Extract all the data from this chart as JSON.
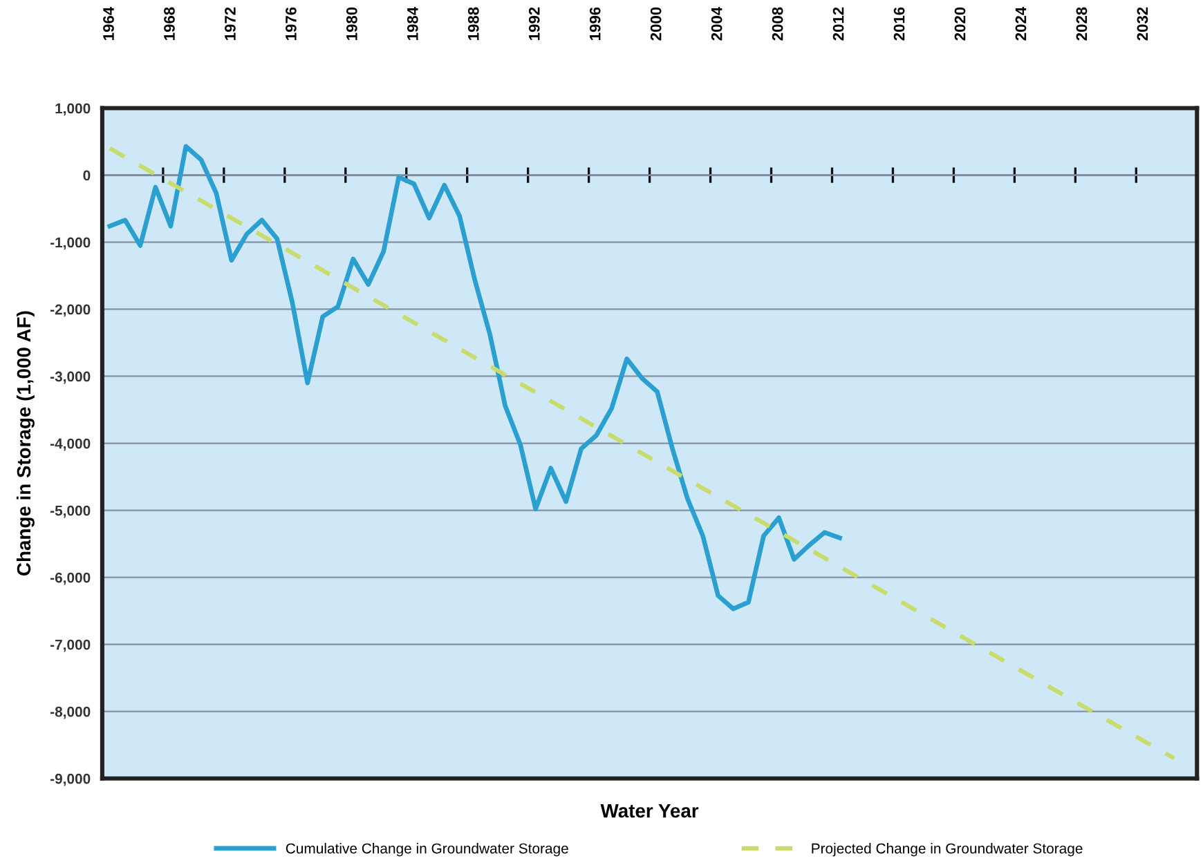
{
  "chart_data": {
    "type": "line",
    "xlabel": "Water Year",
    "ylabel": "Change in Storage (1,000 AF)",
    "xlim": [
      1963.5,
      2035.5
    ],
    "ylim": [
      -9000,
      1000
    ],
    "yticks": [
      {
        "value": 1000,
        "label": "1,000"
      },
      0,
      {
        "value": -1000,
        "label": "-1,000"
      },
      {
        "value": -2000,
        "label": "-2,000"
      },
      {
        "value": -3000,
        "label": "-3,000"
      },
      {
        "value": -4000,
        "label": "-4,000"
      },
      {
        "value": -5000,
        "label": "-5,000"
      },
      {
        "value": -6000,
        "label": "-6,000"
      },
      {
        "value": -7000,
        "label": "-7,000"
      },
      {
        "value": -8000,
        "label": "-8,000"
      },
      {
        "value": -9000,
        "label": "-9,000"
      }
    ],
    "xticks": [
      1964,
      1968,
      1972,
      1976,
      1980,
      1984,
      1988,
      1992,
      1996,
      2000,
      2004,
      2008,
      2012,
      2016,
      2020,
      2024,
      2028,
      2032,
      {
        "value": 1967.5,
        "label": null
      },
      {
        "value": 1971.5,
        "label": null
      },
      {
        "value": 1975.5,
        "label": null
      },
      {
        "value": 1979.5,
        "label": null
      },
      {
        "value": 1983.5,
        "label": null
      },
      {
        "value": 1987.5,
        "label": null
      },
      {
        "value": 1991.5,
        "label": null
      },
      {
        "value": 1995.5,
        "label": null
      },
      {
        "value": 1999.5,
        "label": null
      },
      {
        "value": 2003.5,
        "label": null
      },
      {
        "value": 2007.5,
        "label": null
      },
      {
        "value": 2011.5,
        "label": null
      },
      {
        "value": 2015.5,
        "label": null
      },
      {
        "value": 2019.5,
        "label": null
      },
      {
        "value": 2023.5,
        "label": null
      },
      {
        "value": 2027.5,
        "label": null
      },
      {
        "value": 2031.5,
        "label": null
      }
    ],
    "grid": "y",
    "legend": "bottom",
    "series": [
      {
        "name": "Cumulative Change in Groundwater Storage",
        "color": "#2a9fd0",
        "line_style": "solid",
        "x": [
          1964,
          1965,
          1966,
          1967,
          1968,
          1969,
          1970,
          1971,
          1972,
          1973,
          1974,
          1975,
          1976,
          1977,
          1978,
          1979,
          1980,
          1981,
          1982,
          1983,
          1984,
          1985,
          1986,
          1987,
          1988,
          1989,
          1990,
          1991,
          1992,
          1993,
          1994,
          1995,
          1996,
          1997,
          1998,
          1999,
          2000,
          2001,
          2002,
          2003,
          2004,
          2005,
          2006,
          2007,
          2008,
          2009,
          2010,
          2011,
          2012
        ],
        "values": [
          -760,
          -670,
          -1050,
          -180,
          -760,
          430,
          230,
          -270,
          -1270,
          -880,
          -670,
          -950,
          -1900,
          -3100,
          -2110,
          -1960,
          -1250,
          -1630,
          -1140,
          -30,
          -130,
          -640,
          -150,
          -610,
          -1560,
          -2380,
          -3440,
          -4020,
          -4980,
          -4370,
          -4870,
          -4080,
          -3880,
          -3480,
          -2740,
          -3030,
          -3230,
          -4080,
          -4830,
          -5380,
          -6270,
          -6470,
          -6370,
          -5380,
          -5110,
          -5730,
          -5520,
          -5330,
          -5410
        ]
      },
      {
        "name": "Projected Change in Groundwater Storage",
        "color": "#c8dc6e",
        "line_style": "dashed",
        "x": [
          1964,
          2034
        ],
        "values": [
          400,
          -8700
        ]
      }
    ]
  }
}
